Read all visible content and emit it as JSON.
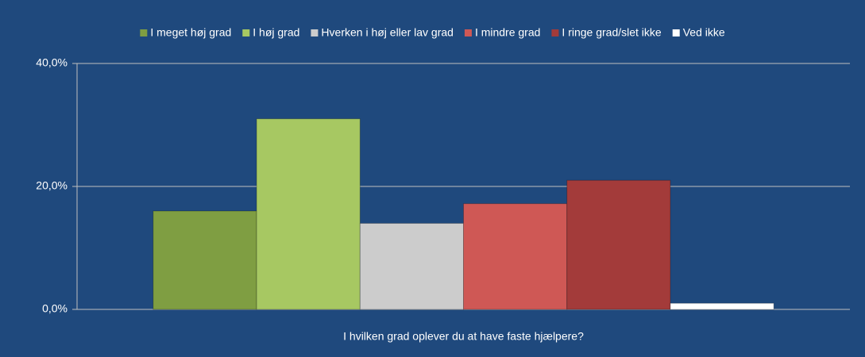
{
  "chart_data": {
    "type": "bar",
    "categories": [
      "I hvilken grad oplever du at have faste hjælpere?"
    ],
    "series": [
      {
        "name": "I meget høj grad",
        "color": "#7f9e42",
        "values": [
          16
        ]
      },
      {
        "name": "I høj grad",
        "color": "#a7c862",
        "values": [
          31
        ]
      },
      {
        "name": "Hverken i høj eller lav grad",
        "color": "#cccccc",
        "values": [
          14
        ]
      },
      {
        "name": "I mindre grad",
        "color": "#cf5855",
        "values": [
          17.2
        ]
      },
      {
        "name": "I ringe grad/slet ikke",
        "color": "#a33b3a",
        "values": [
          21
        ]
      },
      {
        "name": "Ved ikke",
        "color": "#ffffff",
        "values": [
          1
        ]
      }
    ],
    "ylim": [
      0,
      40
    ],
    "yticks": [
      {
        "value": 0,
        "label": "0,0%"
      },
      {
        "value": 20,
        "label": "20,0%"
      },
      {
        "value": 40,
        "label": "40,0%"
      }
    ],
    "grid": true,
    "legend": "top"
  }
}
